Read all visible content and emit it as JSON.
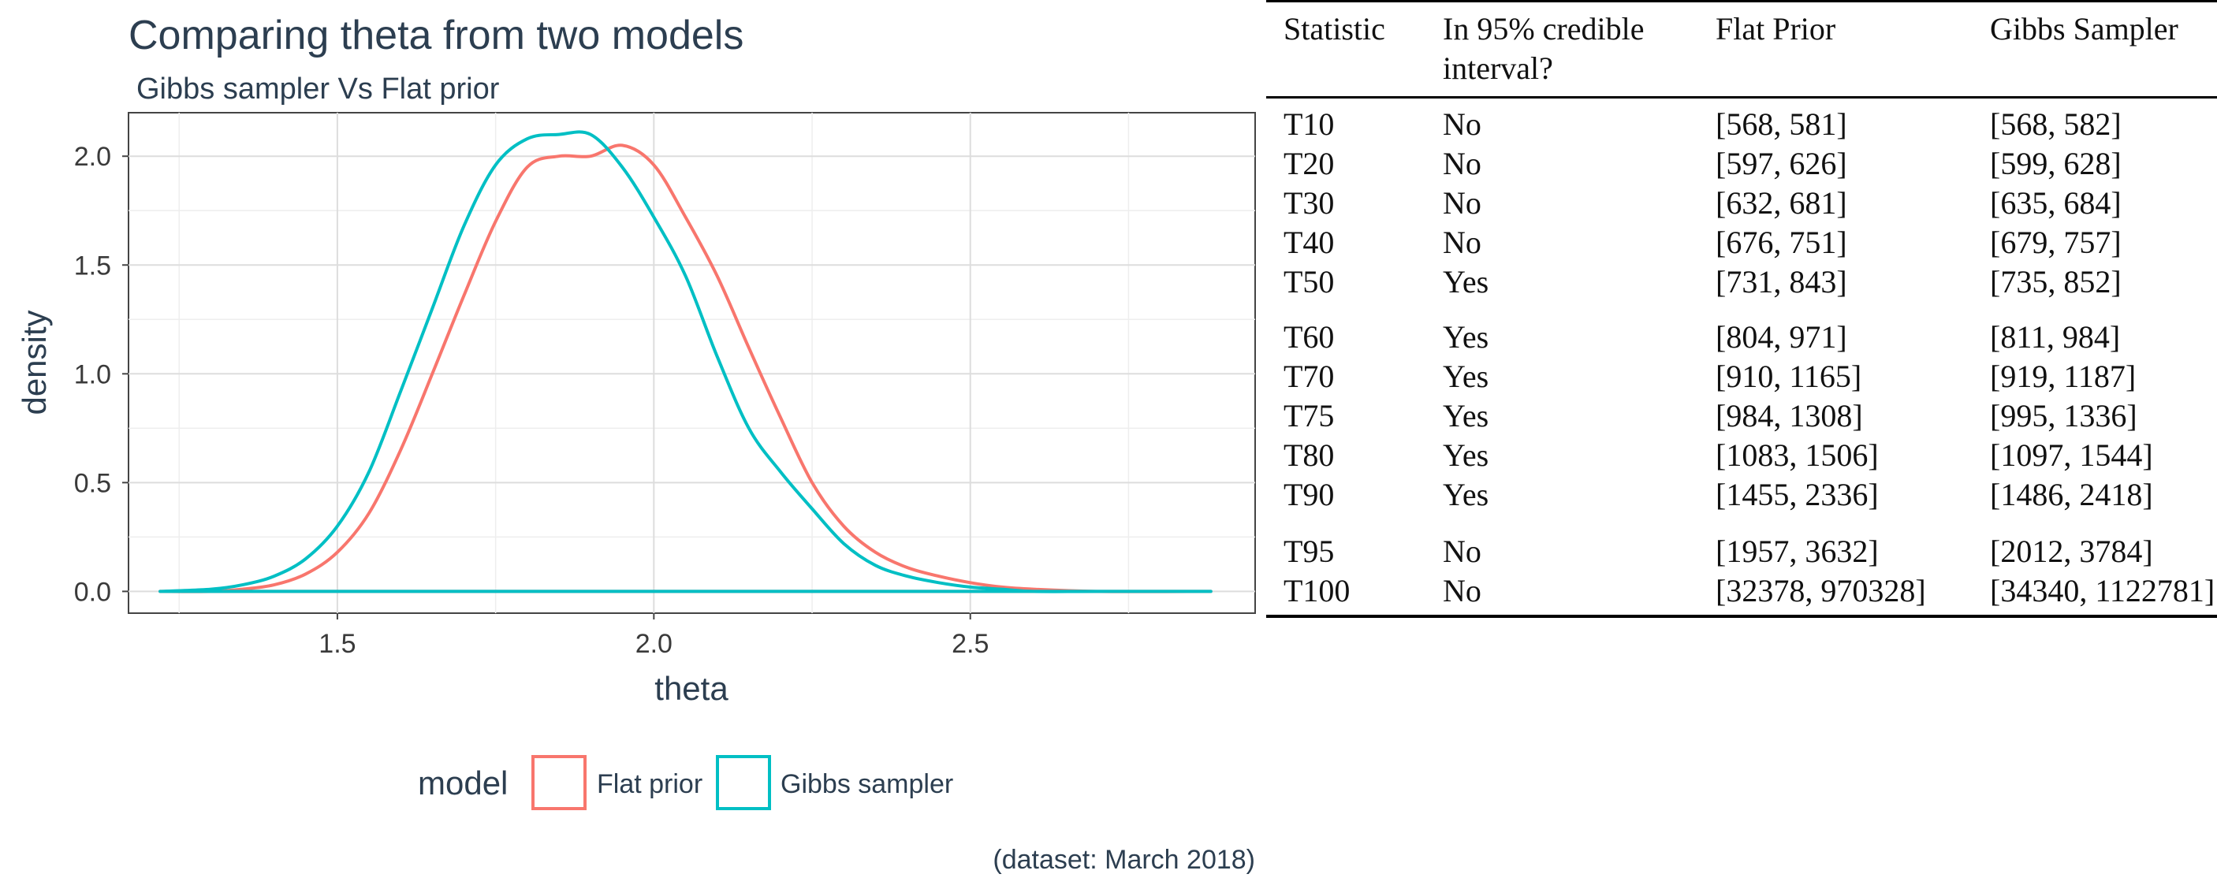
{
  "chart_data": [
    {
      "type": "line",
      "title": "Comparing theta from two models",
      "subtitle": "Gibbs sampler Vs Flat prior",
      "xlabel": "theta",
      "ylabel": "density",
      "caption": "(dataset: March 2018)",
      "xlim": [
        1.17,
        2.95
      ],
      "ylim": [
        -0.1,
        2.2
      ],
      "x_ticks": [
        1.5,
        2.0,
        2.5
      ],
      "x_tick_labels": [
        "1.5",
        "2.0",
        "2.5"
      ],
      "y_ticks": [
        0.0,
        0.5,
        1.0,
        1.5,
        2.0
      ],
      "y_tick_labels": [
        "0.0",
        "0.5",
        "1.0",
        "1.5",
        "2.0"
      ],
      "grid": true,
      "legend": {
        "title": "model",
        "placement": "bottom",
        "entries": [
          "Flat prior",
          "Gibbs sampler"
        ]
      },
      "series": [
        {
          "name": "Flat prior",
          "color": "#f8766d",
          "x": [
            1.22,
            1.3,
            1.35,
            1.4,
            1.45,
            1.5,
            1.55,
            1.6,
            1.65,
            1.7,
            1.75,
            1.8,
            1.85,
            1.9,
            1.95,
            2.0,
            2.05,
            2.1,
            2.15,
            2.2,
            2.25,
            2.3,
            2.35,
            2.4,
            2.45,
            2.5,
            2.55,
            2.6,
            2.7,
            2.88
          ],
          "y": [
            0.0,
            0.0,
            0.01,
            0.03,
            0.08,
            0.18,
            0.36,
            0.65,
            1.0,
            1.36,
            1.7,
            1.95,
            2.0,
            2.0,
            2.05,
            1.96,
            1.72,
            1.45,
            1.12,
            0.8,
            0.5,
            0.3,
            0.18,
            0.11,
            0.07,
            0.04,
            0.02,
            0.01,
            0.0,
            0.0
          ]
        },
        {
          "name": "Gibbs sampler",
          "color": "#00bfc4",
          "x": [
            1.22,
            1.3,
            1.35,
            1.4,
            1.45,
            1.5,
            1.55,
            1.6,
            1.65,
            1.7,
            1.75,
            1.8,
            1.85,
            1.9,
            1.95,
            2.0,
            2.05,
            2.1,
            2.15,
            2.2,
            2.25,
            2.3,
            2.35,
            2.4,
            2.45,
            2.5,
            2.55,
            2.6,
            2.7,
            2.88
          ],
          "y": [
            0.0,
            0.01,
            0.03,
            0.07,
            0.15,
            0.3,
            0.55,
            0.92,
            1.3,
            1.68,
            1.96,
            2.08,
            2.1,
            2.1,
            1.95,
            1.72,
            1.45,
            1.08,
            0.75,
            0.55,
            0.38,
            0.22,
            0.12,
            0.07,
            0.04,
            0.02,
            0.01,
            0.0,
            0.0,
            0.0
          ]
        }
      ]
    },
    {
      "type": "table",
      "columns": [
        "Statistic",
        "In 95% credible interval?",
        "Flat Prior",
        "Gibbs Sampler"
      ],
      "header_lines": {
        "statistic": "Statistic",
        "in_ci_line1": "In 95% credible",
        "in_ci_line2": "interval?",
        "flat_prior": "Flat Prior",
        "gibbs_sampler": "Gibbs Sampler"
      },
      "rows": [
        [
          "T10",
          "No",
          "[568, 581]",
          "[568, 582]"
        ],
        [
          "T20",
          "No",
          "[597, 626]",
          "[599, 628]"
        ],
        [
          "T30",
          "No",
          "[632, 681]",
          "[635, 684]"
        ],
        [
          "T40",
          "No",
          "[676, 751]",
          "[679, 757]"
        ],
        [
          "T50",
          "Yes",
          "[731, 843]",
          "[735, 852]"
        ],
        [
          "T60",
          "Yes",
          "[804, 971]",
          "[811, 984]"
        ],
        [
          "T70",
          "Yes",
          "[910, 1165]",
          "[919, 1187]"
        ],
        [
          "T75",
          "Yes",
          "[984, 1308]",
          "[995, 1336]"
        ],
        [
          "T80",
          "Yes",
          "[1083, 1506]",
          "[1097, 1544]"
        ],
        [
          "T90",
          "Yes",
          "[1455, 2336]",
          "[1486, 2418]"
        ],
        [
          "T95",
          "No",
          "[1957, 3632]",
          "[2012, 3784]"
        ],
        [
          "T100",
          "No",
          "[32378, 970328]",
          "[34340, 1122781]"
        ]
      ]
    }
  ]
}
